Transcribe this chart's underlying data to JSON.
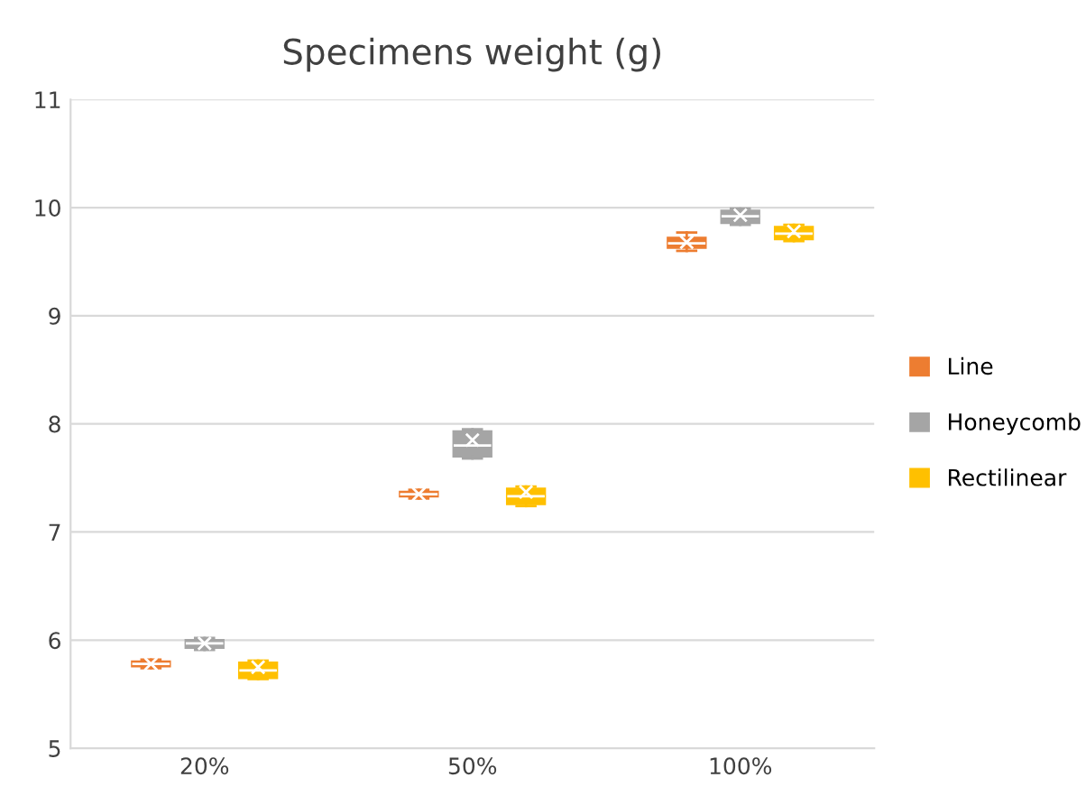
{
  "chart_data": {
    "type": "box",
    "title": "Specimens weight (g)",
    "categories": [
      "20%",
      "50%",
      "100%"
    ],
    "series": [
      {
        "name": "Line",
        "color": "#ed7d31",
        "boxes": [
          {
            "low": 5.74,
            "q1": 5.76,
            "median": 5.78,
            "q3": 5.8,
            "high": 5.82,
            "mean": 5.78
          },
          {
            "low": 7.31,
            "q1": 7.33,
            "median": 7.35,
            "q3": 7.37,
            "high": 7.39,
            "mean": 7.35
          },
          {
            "low": 9.6,
            "q1": 9.63,
            "median": 9.67,
            "q3": 9.72,
            "high": 9.77,
            "mean": 9.68
          }
        ]
      },
      {
        "name": "Honeycomb",
        "color": "#a5a5a5",
        "boxes": [
          {
            "low": 5.91,
            "q1": 5.93,
            "median": 5.97,
            "q3": 6.0,
            "high": 6.02,
            "mean": 5.97
          },
          {
            "low": 7.68,
            "q1": 7.7,
            "median": 7.8,
            "q3": 7.93,
            "high": 7.95,
            "mean": 7.85
          },
          {
            "low": 9.84,
            "q1": 9.86,
            "median": 9.92,
            "q3": 9.97,
            "high": 9.99,
            "mean": 9.93
          }
        ]
      },
      {
        "name": "Rectilinear",
        "color": "#ffc000",
        "boxes": [
          {
            "low": 5.64,
            "q1": 5.65,
            "median": 5.72,
            "q3": 5.79,
            "high": 5.81,
            "mean": 5.75
          },
          {
            "low": 7.24,
            "q1": 7.26,
            "median": 7.33,
            "q3": 7.4,
            "high": 7.42,
            "mean": 7.37
          },
          {
            "low": 9.69,
            "q1": 9.71,
            "median": 9.76,
            "q3": 9.82,
            "high": 9.84,
            "mean": 9.78
          }
        ]
      }
    ],
    "ylim": [
      5,
      11
    ],
    "yticks": [
      5,
      6,
      7,
      8,
      9,
      10,
      11
    ],
    "grid": "y",
    "legend": "right"
  }
}
